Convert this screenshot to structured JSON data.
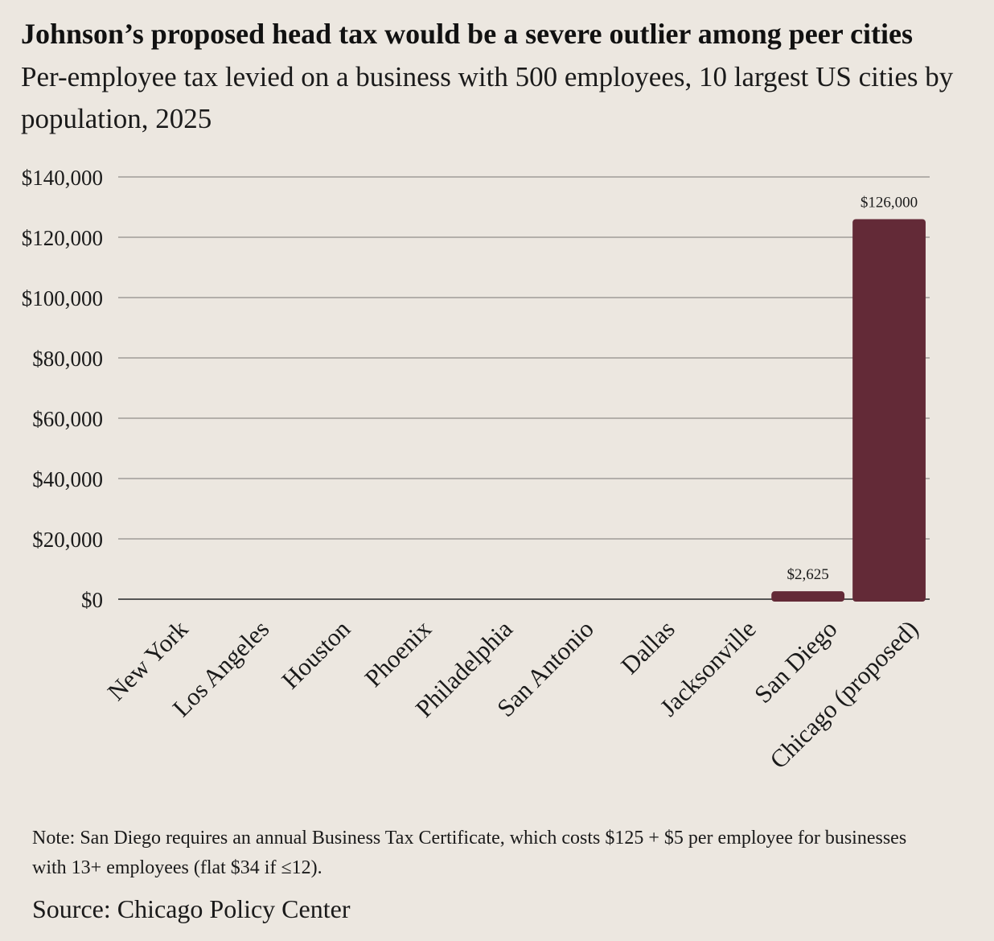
{
  "title": "Johnson’s proposed head tax would be a severe outlier among peer cities",
  "subtitle": "Per-employee tax levied on a business with 500 employees, 10 largest US cities by population, 2025",
  "note": "Note: San Diego requires an annual Business Tax Certificate, which costs $125 + $5 per employee for businesses with 13+ employees (flat $34 if ≤12).",
  "source": "Source: Chicago Policy Center",
  "colors": {
    "bar": "#632a37",
    "grid": "#b3afaa",
    "background": "#ece7e0"
  },
  "chart_data": {
    "type": "bar",
    "title": "Johnson’s proposed head tax would be a severe outlier among peer cities",
    "subtitle": "Per-employee tax levied on a business with 500 employees, 10 largest US cities by population, 2025",
    "xlabel": "",
    "ylabel": "",
    "categories": [
      "New York",
      "Los Angeles",
      "Houston",
      "Phoenix",
      "Philadelphia",
      "San Antonio",
      "Dallas",
      "Jacksonville",
      "San Diego",
      "Chicago (proposed)"
    ],
    "values": [
      0,
      0,
      0,
      0,
      0,
      0,
      0,
      0,
      2625,
      126000
    ],
    "data_labels": [
      "",
      "",
      "",
      "",
      "",
      "",
      "",
      "",
      "$2,625",
      "$126,000"
    ],
    "ylim": [
      0,
      140000
    ],
    "yticks": [
      0,
      20000,
      40000,
      60000,
      80000,
      100000,
      120000,
      140000
    ],
    "ytick_labels": [
      "$0",
      "$20,000",
      "$40,000",
      "$60,000",
      "$80,000",
      "$100,000",
      "$120,000",
      "$140,000"
    ],
    "grid": true,
    "legend": "none"
  }
}
